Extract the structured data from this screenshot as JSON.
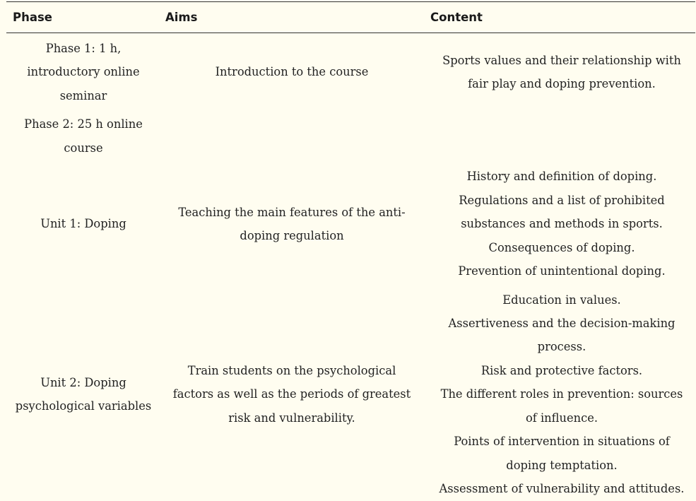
{
  "headers": {
    "phase": "Phase",
    "aims": "Aims",
    "content": "Content"
  },
  "rows": [
    {
      "phase": [
        "Phase 1: 1 h,",
        "introductory online",
        "seminar"
      ],
      "aims": [
        "Introduction to the course"
      ],
      "content": [
        "Sports values and their relationship with",
        "fair play and doping prevention."
      ]
    },
    {
      "phase": [
        "Phase 2: 25 h online",
        "course"
      ],
      "aims": [],
      "content": []
    },
    {
      "phase": [
        "Unit 1: Doping"
      ],
      "aims": [
        "Teaching the main features of the anti-",
        "doping regulation"
      ],
      "content": [
        "History and definition of doping.",
        "Regulations and a list of prohibited",
        "substances and methods in sports.",
        "Consequences of doping.",
        "Prevention of unintentional doping."
      ]
    },
    {
      "phase": [
        "Unit 2: Doping",
        "psychological variables"
      ],
      "aims": [
        "Train students on the psychological",
        "factors as well as the periods of greatest",
        "risk and vulnerability."
      ],
      "content": [
        "Education in values.",
        "Assertiveness and the decision-making",
        "process.",
        "Risk and protective factors.",
        "The different roles in prevention: sources",
        "of influence.",
        "Points of intervention in situations of",
        "doping temptation.",
        "Assessment of vulnerability and attitudes."
      ]
    }
  ]
}
